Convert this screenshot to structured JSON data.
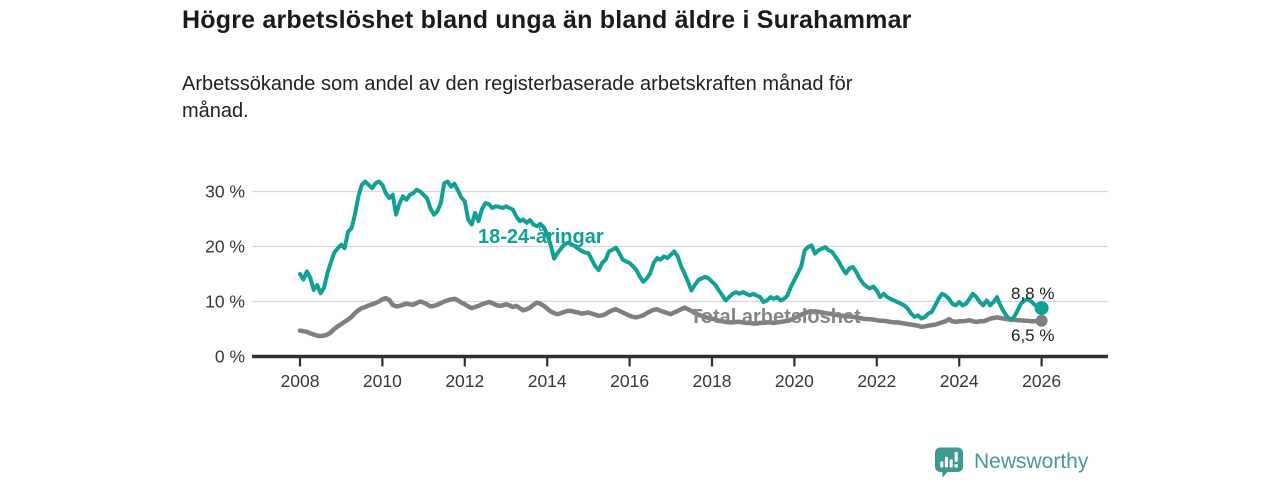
{
  "header": {
    "title": "Högre arbetslöshet bland unga än bland äldre i Surahammar",
    "subtitle": "Arbetssökande som andel av den registerbaserade arbetskraften månad för månad.",
    "subtitle_lines": [
      "Arbetssökande som andel av den registerbaserade arbetskraften månad för",
      "månad."
    ]
  },
  "chart_data": {
    "type": "line",
    "title": "Högre arbetslöshet bland unga än bland äldre i Surahammar",
    "subtitle": "Arbetssökande som andel av den registerbaserade arbetskraften månad för månad.",
    "unit": "%",
    "grid": "horizontal-only",
    "legend_position": "inline-labels",
    "x_start_year": 2008,
    "points_per_year": 12,
    "xlim_years": [
      2006.8,
      2027.6
    ],
    "ylim": [
      0,
      34
    ],
    "x_tick_years": [
      2008,
      2010,
      2012,
      2014,
      2016,
      2018,
      2020,
      2022,
      2024,
      2026
    ],
    "y_ticks": [
      {
        "value": 0,
        "label": "0 %"
      },
      {
        "value": 10,
        "label": "10 %"
      },
      {
        "value": 20,
        "label": "20 %"
      },
      {
        "value": 30,
        "label": "30 %"
      }
    ],
    "series": [
      {
        "name": "18-24-åringar",
        "color": "#10a094",
        "end_value": 8.8,
        "end_label": "8,8 %",
        "values": [
          15.0,
          14.0,
          15.5,
          14.3,
          12.1,
          13.0,
          11.5,
          12.5,
          15.2,
          17.1,
          18.9,
          19.7,
          20.3,
          19.7,
          22.7,
          23.3,
          25.8,
          29.1,
          31.2,
          31.8,
          31.2,
          30.6,
          31.5,
          31.8,
          31.2,
          29.7,
          28.8,
          29.4,
          25.8,
          27.9,
          29.1,
          28.5,
          29.4,
          29.7,
          30.3,
          30.0,
          29.4,
          28.8,
          26.9,
          25.8,
          26.4,
          27.9,
          31.5,
          31.8,
          30.9,
          31.4,
          30.2,
          28.9,
          28.2,
          24.9,
          24.0,
          26.1,
          24.6,
          26.8,
          27.9,
          27.7,
          27.0,
          27.3,
          27.2,
          27.0,
          27.3,
          27.0,
          26.7,
          25.5,
          24.6,
          24.9,
          24.3,
          24.8,
          24.0,
          23.7,
          24.1,
          23.5,
          22.2,
          20.3,
          17.8,
          18.8,
          19.6,
          20.4,
          20.7,
          20.4,
          20.1,
          19.6,
          19.2,
          18.9,
          18.8,
          17.6,
          16.4,
          15.7,
          17.0,
          17.6,
          19.1,
          19.4,
          19.8,
          18.8,
          17.6,
          17.3,
          17.0,
          16.4,
          15.7,
          14.5,
          13.6,
          14.2,
          15.1,
          17.0,
          17.9,
          17.6,
          18.2,
          17.9,
          18.5,
          19.1,
          18.2,
          16.4,
          15.1,
          13.6,
          12.0,
          13.0,
          13.9,
          14.2,
          14.5,
          14.2,
          13.6,
          13.0,
          12.0,
          11.1,
          10.2,
          10.8,
          11.4,
          11.7,
          11.4,
          11.7,
          11.4,
          11.1,
          11.4,
          11.1,
          10.8,
          9.9,
          10.2,
          10.8,
          10.5,
          10.8,
          10.2,
          10.5,
          11.1,
          12.7,
          13.9,
          15.1,
          16.4,
          19.3,
          19.9,
          20.2,
          18.7,
          19.3,
          19.6,
          19.9,
          19.3,
          19.0,
          18.1,
          17.2,
          16.0,
          15.1,
          16.0,
          16.3,
          15.4,
          14.2,
          13.3,
          12.7,
          12.4,
          12.7,
          12.0,
          10.8,
          11.4,
          10.8,
          10.5,
          10.2,
          9.9,
          9.6,
          9.3,
          8.7,
          7.8,
          7.2,
          7.5,
          6.9,
          7.2,
          7.8,
          8.1,
          9.3,
          10.5,
          11.4,
          11.1,
          10.5,
          9.6,
          9.3,
          9.9,
          9.3,
          9.6,
          10.5,
          11.4,
          10.8,
          9.9,
          9.3,
          10.2,
          9.3,
          9.9,
          10.8,
          9.3,
          8.1,
          7.2,
          6.6,
          7.2,
          8.4,
          9.6,
          10.2,
          10.4,
          10.0,
          9.4,
          9.0,
          8.8
        ]
      },
      {
        "name": "Total arbetslöshet",
        "color": "#7f7f7f",
        "end_value": 6.5,
        "end_label": "6,5 %",
        "values": [
          4.7,
          4.6,
          4.5,
          4.2,
          4.0,
          3.8,
          3.7,
          3.8,
          4.0,
          4.4,
          5.0,
          5.5,
          5.9,
          6.3,
          6.7,
          7.2,
          7.9,
          8.4,
          8.8,
          9.0,
          9.3,
          9.5,
          9.7,
          10.0,
          10.4,
          10.6,
          10.3,
          9.4,
          9.1,
          9.2,
          9.4,
          9.6,
          9.5,
          9.4,
          9.7,
          10.0,
          9.8,
          9.5,
          9.1,
          9.2,
          9.4,
          9.7,
          10.0,
          10.2,
          10.4,
          10.5,
          10.2,
          9.8,
          9.5,
          9.1,
          8.8,
          9.0,
          9.2,
          9.5,
          9.7,
          9.9,
          9.7,
          9.4,
          9.2,
          9.3,
          9.5,
          9.3,
          9.0,
          9.2,
          8.8,
          8.4,
          8.6,
          8.9,
          9.4,
          9.8,
          9.6,
          9.2,
          8.7,
          8.2,
          7.9,
          7.7,
          7.9,
          8.1,
          8.3,
          8.3,
          8.1,
          8.0,
          7.8,
          7.9,
          8.0,
          7.8,
          7.6,
          7.4,
          7.5,
          7.7,
          8.1,
          8.4,
          8.6,
          8.3,
          8.0,
          7.7,
          7.4,
          7.2,
          7.1,
          7.3,
          7.5,
          7.9,
          8.2,
          8.5,
          8.6,
          8.3,
          8.1,
          7.9,
          7.7,
          8.0,
          8.3,
          8.6,
          8.9,
          8.6,
          8.3,
          7.9,
          7.6,
          7.4,
          7.2,
          7.0,
          6.9,
          6.7,
          6.5,
          6.4,
          6.3,
          6.2,
          6.2,
          6.3,
          6.3,
          6.2,
          6.1,
          6.1,
          6.0,
          6.0,
          6.1,
          6.1,
          6.2,
          6.2,
          6.1,
          6.2,
          6.3,
          6.4,
          6.5,
          6.7,
          7.0,
          7.3,
          7.6,
          7.9,
          8.1,
          8.2,
          8.1,
          8.1,
          8.0,
          7.9,
          7.8,
          7.7,
          7.6,
          7.5,
          7.4,
          7.3,
          7.3,
          7.2,
          7.1,
          7.0,
          6.9,
          6.8,
          6.8,
          6.7,
          6.6,
          6.5,
          6.5,
          6.4,
          6.3,
          6.2,
          6.2,
          6.1,
          6.0,
          5.9,
          5.8,
          5.7,
          5.6,
          5.4,
          5.5,
          5.6,
          5.7,
          5.8,
          6.0,
          6.2,
          6.4,
          6.8,
          6.4,
          6.3,
          6.4,
          6.4,
          6.5,
          6.6,
          6.4,
          6.3,
          6.4,
          6.4,
          6.6,
          6.9,
          7.0,
          7.1,
          7.0,
          6.9,
          6.8,
          6.8,
          6.7,
          6.6,
          6.6,
          6.5,
          6.5,
          6.4,
          6.4,
          6.5,
          6.5
        ]
      }
    ]
  },
  "footer": {
    "brand": "Newsworthy"
  },
  "colors": {
    "accent_teal": "#10a094",
    "series_gray": "#7f7f7f",
    "gridline": "#d8d8d8",
    "axis": "#303030",
    "text_dark": "#1a1a1a",
    "brand_teal": "#459a91"
  }
}
